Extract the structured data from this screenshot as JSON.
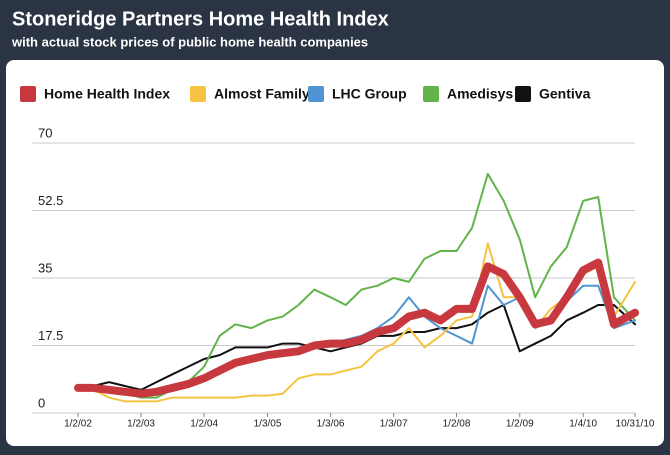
{
  "chart_data": {
    "type": "line",
    "title": "Stoneridge Partners Home Health Index",
    "subtitle": "with actual stock prices of public home health companies",
    "x": [
      "2002-01-02",
      "2002-04-01",
      "2002-07-01",
      "2002-10-01",
      "2003-01-02",
      "2003-04-01",
      "2003-07-01",
      "2003-10-01",
      "2004-01-02",
      "2004-04-01",
      "2004-07-01",
      "2004-10-01",
      "2005-01-03",
      "2005-04-01",
      "2005-07-01",
      "2005-10-01",
      "2006-01-03",
      "2006-04-01",
      "2006-07-01",
      "2006-10-01",
      "2007-01-03",
      "2007-04-01",
      "2007-07-01",
      "2007-10-01",
      "2008-01-02",
      "2008-04-01",
      "2008-07-01",
      "2008-10-01",
      "2009-01-02",
      "2009-04-01",
      "2009-07-01",
      "2009-10-01",
      "2010-01-04",
      "2010-04-01",
      "2010-07-01",
      "2010-10-31"
    ],
    "series": [
      {
        "name": "Home Health Index",
        "color": "#c8383f",
        "values": [
          6.5,
          6.5,
          6,
          5.5,
          5,
          5.5,
          6.5,
          7.5,
          9,
          11,
          13,
          14,
          15,
          15.5,
          16,
          17.5,
          18,
          18,
          19,
          21,
          22,
          25,
          26,
          24,
          27,
          27,
          38,
          36,
          30,
          23,
          24,
          30,
          37,
          39,
          23,
          26
        ]
      },
      {
        "name": "Almost Family",
        "color": "#f5c242",
        "values": [
          7,
          6,
          4,
          3,
          3,
          3,
          4,
          4,
          4,
          4,
          4,
          4.5,
          4.5,
          5,
          9,
          10,
          10,
          11,
          12,
          16,
          18,
          22,
          17,
          20,
          24,
          25,
          44,
          30,
          30,
          22,
          27,
          30,
          36,
          38,
          25,
          34
        ]
      },
      {
        "name": "LHC Group",
        "color": "#4f95d3",
        "values": [
          null,
          null,
          null,
          null,
          null,
          null,
          null,
          null,
          null,
          null,
          null,
          null,
          null,
          null,
          16,
          17,
          18,
          19,
          20,
          22,
          25,
          30,
          25,
          22,
          20,
          18,
          33,
          28,
          30,
          22,
          24,
          29,
          33,
          33,
          22,
          24
        ]
      },
      {
        "name": "Amedisys",
        "color": "#62b34a",
        "values": [
          7,
          7,
          6,
          5,
          4,
          4,
          6,
          8,
          12,
          20,
          23,
          22,
          24,
          25,
          28,
          32,
          30,
          28,
          32,
          33,
          35,
          34,
          40,
          42,
          42,
          48,
          62,
          55,
          45,
          30,
          38,
          43,
          55,
          56,
          30,
          24
        ]
      },
      {
        "name": "Gentiva",
        "color": "#111111",
        "values": [
          7,
          7,
          8,
          7,
          6,
          8,
          10,
          12,
          14,
          15,
          17,
          17,
          17,
          18,
          18,
          17,
          16,
          17,
          18,
          20,
          20,
          21,
          21,
          22,
          22,
          23,
          26,
          28,
          16,
          18,
          20,
          24,
          26,
          28,
          28,
          23
        ]
      }
    ],
    "xlim": [
      "2002-01-02",
      "2010-10-31"
    ],
    "xticks": [
      {
        "value": "2002-01-02",
        "label": "1/2/02"
      },
      {
        "value": "2003-01-02",
        "label": "1/2/03"
      },
      {
        "value": "2004-01-02",
        "label": "1/2/04"
      },
      {
        "value": "2005-01-03",
        "label": "1/3/05"
      },
      {
        "value": "2006-01-03",
        "label": "1/3/06"
      },
      {
        "value": "2007-01-03",
        "label": "1/3/07"
      },
      {
        "value": "2008-01-02",
        "label": "1/2/08"
      },
      {
        "value": "2009-01-02",
        "label": "1/2/09"
      },
      {
        "value": "2010-01-04",
        "label": "1/4/10"
      },
      {
        "value": "2010-10-31",
        "label": "10/31/10"
      }
    ],
    "ylim": [
      0,
      70
    ],
    "yticks": [
      0,
      17.5,
      35,
      52.5,
      70
    ],
    "grid": true,
    "legend": "top"
  }
}
